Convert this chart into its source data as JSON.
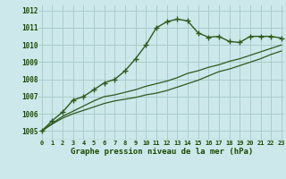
{
  "title": "Graphe pression niveau de la mer (hPa)",
  "bg_color": "#cce8ea",
  "grid_color": "#aacccc",
  "line_color": "#2d5a1b",
  "text_color": "#1a4a00",
  "x_labels": [
    "0",
    "1",
    "2",
    "3",
    "4",
    "5",
    "6",
    "7",
    "8",
    "9",
    "10",
    "11",
    "12",
    "13",
    "14",
    "15",
    "16",
    "17",
    "18",
    "19",
    "20",
    "21",
    "22",
    "23"
  ],
  "ylim": [
    1004.5,
    1012.3
  ],
  "yticks": [
    1005,
    1006,
    1007,
    1008,
    1009,
    1010,
    1011,
    1012
  ],
  "xlim": [
    -0.3,
    23.3
  ],
  "series1": [
    1005.0,
    1005.6,
    1006.1,
    1006.8,
    1007.0,
    1007.4,
    1007.8,
    1008.0,
    1008.5,
    1009.2,
    1010.0,
    1011.0,
    1011.35,
    1011.5,
    1011.4,
    1010.7,
    1010.45,
    1010.5,
    1010.2,
    1010.15,
    1010.5,
    1010.5,
    1010.5,
    1010.4
  ],
  "series2": [
    1005.0,
    1005.45,
    1005.85,
    1006.15,
    1006.45,
    1006.75,
    1007.0,
    1007.1,
    1007.25,
    1007.4,
    1007.6,
    1007.75,
    1007.9,
    1008.1,
    1008.35,
    1008.5,
    1008.7,
    1008.85,
    1009.05,
    1009.2,
    1009.4,
    1009.6,
    1009.8,
    1010.0
  ],
  "series3": [
    1005.0,
    1005.4,
    1005.75,
    1006.0,
    1006.2,
    1006.4,
    1006.6,
    1006.75,
    1006.85,
    1006.95,
    1007.1,
    1007.2,
    1007.35,
    1007.55,
    1007.75,
    1007.95,
    1008.2,
    1008.45,
    1008.6,
    1008.8,
    1009.0,
    1009.2,
    1009.45,
    1009.65
  ]
}
